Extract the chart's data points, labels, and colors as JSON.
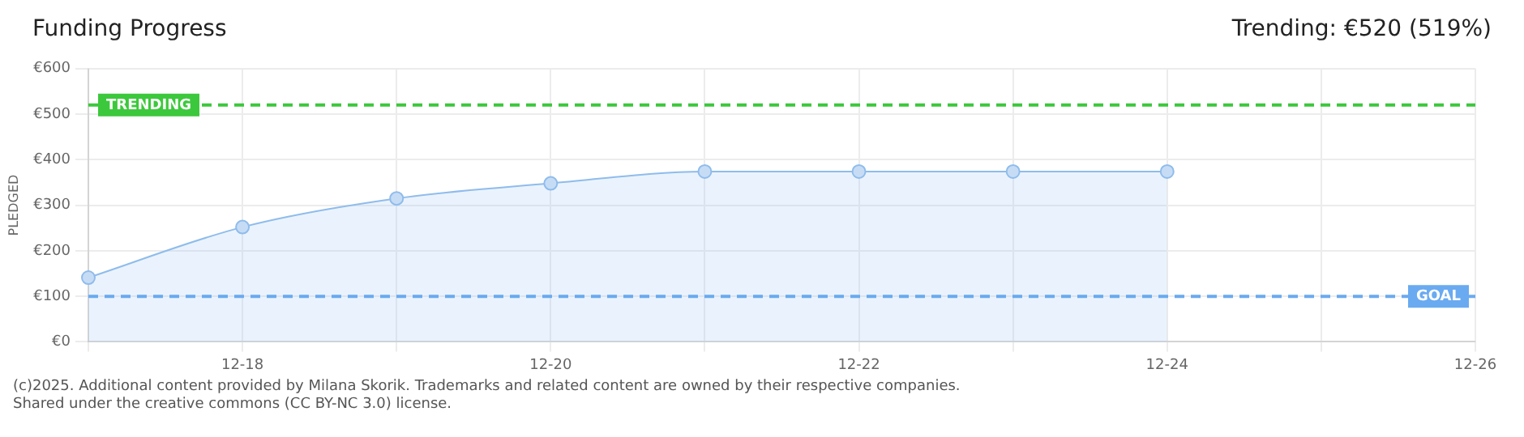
{
  "chart_data": {
    "type": "area",
    "title": "Funding Progress",
    "ylabel": "PLEDGED",
    "annotations": [
      "Trending: €520 (519%)",
      "(c)2025. Additional content provided by Milana Skorik. Trademarks and related content are owned by their respective companies.",
      "Shared under the creative commons (CC BY-NC 3.0) license."
    ],
    "categories": [
      null,
      "12-18",
      null,
      "12-20",
      null,
      "12-22",
      null,
      "12-24",
      null,
      "12-26"
    ],
    "series": [
      {
        "color": "#8fbcec",
        "values": [
          141,
          252,
          315,
          348,
          374,
          374,
          374,
          374,
          null,
          null
        ]
      }
    ],
    "ylim": [
      0,
      600
    ],
    "yticks": [
      {
        "value": 0,
        "label": "€0"
      },
      {
        "value": 100,
        "label": "€100"
      },
      {
        "value": 200,
        "label": "€200"
      },
      {
        "value": 300,
        "label": "€300"
      },
      {
        "value": 400,
        "label": "€400"
      },
      {
        "value": 500,
        "label": "€500"
      },
      {
        "value": 600,
        "label": "€600"
      }
    ],
    "ref_lines": [
      {
        "axis": "y",
        "value": 520,
        "label": "TRENDING",
        "color": "#3cc83c",
        "line_style": "dashed"
      },
      {
        "axis": "y",
        "value": 100,
        "label": "GOAL",
        "color": "#6aaaf0",
        "line_style": "dashed"
      }
    ],
    "grid": true,
    "legend": false,
    "marker": "circle"
  }
}
